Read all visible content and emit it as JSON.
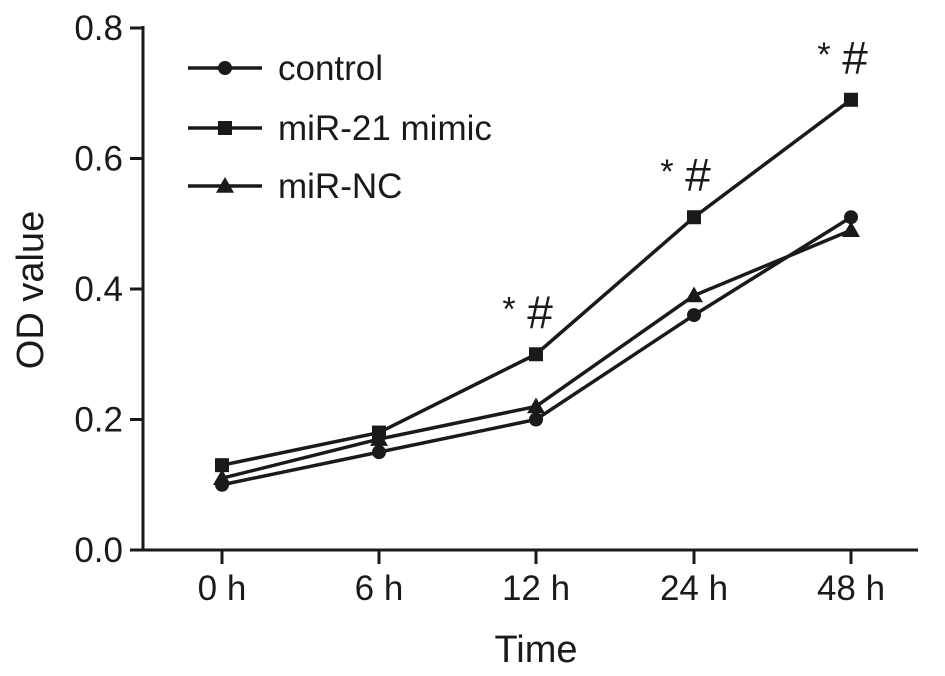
{
  "chart_data": {
    "type": "line",
    "categories": [
      "0 h",
      "6 h",
      "12 h",
      "24 h",
      "48 h"
    ],
    "series": [
      {
        "name": "control",
        "marker": "circle",
        "values": [
          0.1,
          0.15,
          0.2,
          0.36,
          0.51
        ]
      },
      {
        "name": "miR-21 mimic",
        "marker": "square",
        "values": [
          0.13,
          0.18,
          0.3,
          0.51,
          0.69
        ]
      },
      {
        "name": "miR-NC",
        "marker": "triangle",
        "values": [
          0.11,
          0.17,
          0.22,
          0.39,
          0.49
        ]
      }
    ],
    "xlabel": "Time",
    "ylabel": "OD value",
    "ylim": [
      0.0,
      0.8
    ],
    "yticks": [
      "0.0",
      "0.2",
      "0.4",
      "0.6",
      "0.8"
    ],
    "grid": false,
    "legend_position": "top-left",
    "annotations": [
      {
        "category": "12 h",
        "star": "*",
        "hash": "#"
      },
      {
        "category": "24 h",
        "star": "*",
        "hash": "#"
      },
      {
        "category": "48 h",
        "star": "*",
        "hash": "#"
      }
    ],
    "color": "#1a1a1a"
  }
}
